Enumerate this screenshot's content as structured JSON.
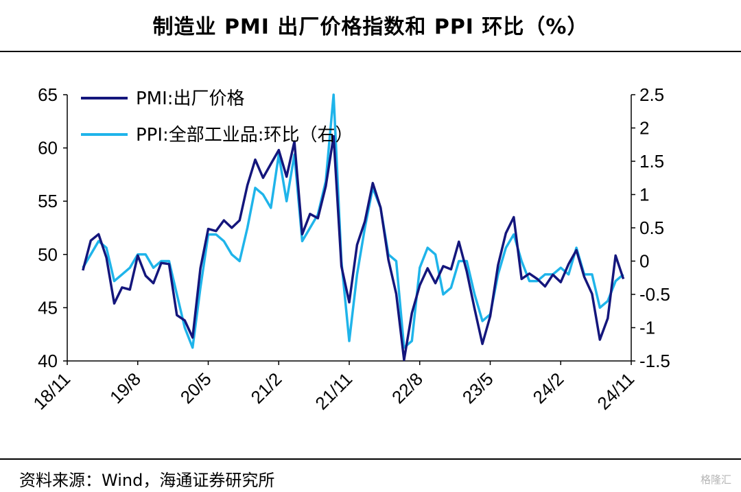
{
  "title": "制造业 PMI 出厂价格指数和 PPI 环比（%）",
  "source": "资料来源：Wind，海通证券研究所",
  "watermark": "格隆汇",
  "chart_data": {
    "type": "line",
    "x_tick_labels": [
      "18/11",
      "19/8",
      "20/5",
      "21/2",
      "21/11",
      "22/8",
      "23/5",
      "24/2",
      "24/11"
    ],
    "x_range": [
      "2018-11",
      "2024-11"
    ],
    "y_left": {
      "lim": [
        40,
        65
      ],
      "ticks": [
        40,
        45,
        50,
        55,
        60,
        65
      ]
    },
    "y_right": {
      "lim": [
        -1.5,
        2.5
      ],
      "ticks": [
        "-1.5",
        "-1",
        "-0.5",
        "0",
        "0.5",
        "1",
        "1.5",
        "2",
        "2.5"
      ]
    },
    "legend_position": "top-left",
    "colors": {
      "pmi": "#14167c",
      "ppi": "#1fb4ea"
    },
    "series": [
      {
        "name": "PMI:出厂价格",
        "axis": "left",
        "start": "2019-01",
        "values": [
          48.5,
          51.3,
          51.9,
          49.7,
          45.4,
          46.9,
          46.7,
          49.9,
          48.0,
          47.3,
          49.2,
          49.1,
          44.3,
          43.8,
          42.2,
          48.7,
          52.4,
          52.2,
          53.2,
          52.5,
          53.2,
          56.5,
          58.9,
          57.2,
          58.5,
          59.8,
          57.3,
          60.6,
          51.9,
          53.8,
          53.4,
          56.4,
          61.1,
          48.9,
          45.5,
          50.9,
          53.1,
          56.7,
          54.4,
          49.5,
          46.3,
          40.1,
          44.5,
          47.1,
          48.7,
          47.3,
          48.9,
          48.6,
          51.2,
          48.4,
          44.9,
          41.6,
          44.2,
          49.0,
          52.0,
          53.5,
          47.7,
          48.2,
          47.7,
          47.0,
          48.1,
          47.4,
          49.1,
          50.4,
          47.9,
          46.3,
          42.0,
          44.0,
          49.9,
          47.7
        ]
      },
      {
        "name": "PPI:全部工业品:环比（右）",
        "axis": "right",
        "start": "2019-01",
        "values": [
          -0.1,
          0.1,
          0.3,
          0.2,
          -0.3,
          -0.2,
          -0.1,
          0.1,
          0.1,
          -0.1,
          0.0,
          0.0,
          -0.5,
          -1.0,
          -1.3,
          -0.4,
          0.4,
          0.4,
          0.3,
          0.1,
          0.0,
          0.5,
          1.1,
          1.0,
          0.8,
          1.6,
          0.9,
          1.6,
          0.3,
          0.5,
          0.7,
          1.2,
          2.5,
          0.0,
          -1.2,
          -0.2,
          0.5,
          1.1,
          0.8,
          0.1,
          0.0,
          -1.3,
          -1.2,
          -0.1,
          0.2,
          0.1,
          -0.5,
          -0.4,
          0.0,
          0.0,
          -0.5,
          -0.9,
          -0.8,
          -0.2,
          0.2,
          0.4,
          0.0,
          -0.3,
          -0.3,
          -0.2,
          -0.2,
          -0.1,
          -0.2,
          0.2,
          -0.2,
          -0.2,
          -0.7,
          -0.6,
          -0.3,
          -0.2
        ]
      }
    ]
  }
}
